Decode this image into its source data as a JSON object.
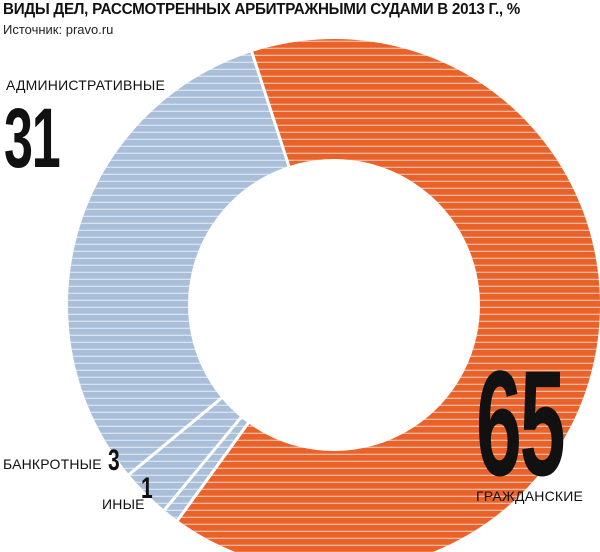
{
  "header": {
    "title": "ВИДЫ ДЕЛ, РАССМОТРЕННЫХ АРБИТРАЖНЫМИ СУДАМИ В 2013 Г., %",
    "source": "Источник: pravo.ru"
  },
  "colors": {
    "civil": "#e8622a",
    "admin": "#a9bed9",
    "bankrupt": "#a9bed9",
    "other": "#a9bed9",
    "stripe": "#ffffff",
    "separator": "#ffffff"
  },
  "chart_data": {
    "type": "pie",
    "donut": true,
    "title": "ВИДЫ ДЕЛ, РАССМОТРЕННЫХ АРБИТРАЖНЫМИ СУДАМИ В 2013 Г., %",
    "labels": [
      "ГРАЖДАНСКИЕ",
      "ИНЫЕ",
      "БАНКРОТНЫЕ",
      "АДМИНИСТРАТИВНЫЕ"
    ],
    "values": [
      65,
      1,
      3,
      31
    ],
    "value_labels": [
      "65",
      "1",
      "3",
      "31"
    ]
  }
}
